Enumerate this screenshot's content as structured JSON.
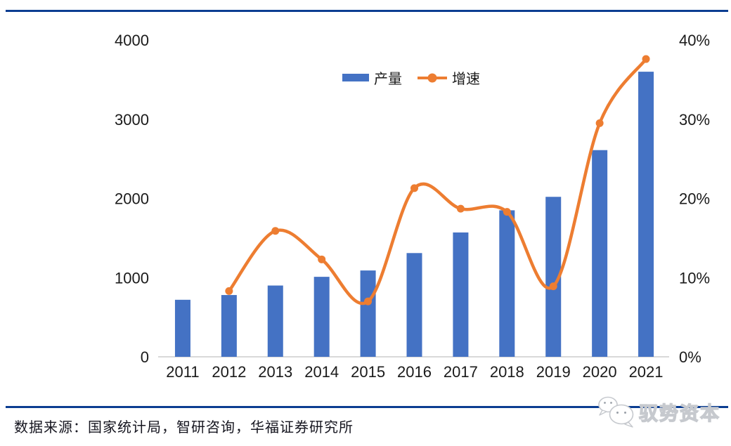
{
  "page": {
    "source_note": "数据来源：国家统计局，智研咨询，华福证券研究所",
    "watermark_text": "驭势资本"
  },
  "colors": {
    "bar": "#4472C4",
    "line": "#ED7D31",
    "rule": "#0B3D91",
    "baseline": "#D9D9D9",
    "tick_text": "#1A1A1A"
  },
  "chart_data": {
    "type": "bar+line combo",
    "title": "",
    "xlabel": "",
    "ylabel_left": "",
    "ylabel_right": "",
    "categories": [
      "2011",
      "2012",
      "2013",
      "2014",
      "2015",
      "2016",
      "2017",
      "2018",
      "2019",
      "2020",
      "2021"
    ],
    "series": [
      {
        "name": "产量",
        "type": "bar",
        "axis": "left",
        "values": [
          720,
          780,
          900,
          1010,
          1090,
          1310,
          1570,
          1850,
          2020,
          2610,
          3600
        ]
      },
      {
        "name": "增速",
        "type": "line",
        "axis": "right",
        "unit": "%",
        "values": [
          null,
          8.3,
          15.9,
          12.3,
          7.0,
          21.3,
          18.7,
          18.3,
          8.9,
          29.5,
          37.6
        ]
      }
    ],
    "left_axis": {
      "min": 0,
      "max": 4000,
      "tick_values": [
        0,
        1000,
        2000,
        3000,
        4000
      ],
      "tick_labels": [
        "0",
        "1000",
        "2000",
        "3000",
        "4000"
      ]
    },
    "right_axis": {
      "min": 0,
      "max": 40,
      "tick_values": [
        0,
        10,
        20,
        30,
        40
      ],
      "tick_labels": [
        "0%",
        "10%",
        "20%",
        "30%",
        "40%"
      ]
    },
    "legend": [
      "产量",
      "增速"
    ],
    "legend_position": "top-center",
    "grid": false,
    "line_smooth": true
  }
}
